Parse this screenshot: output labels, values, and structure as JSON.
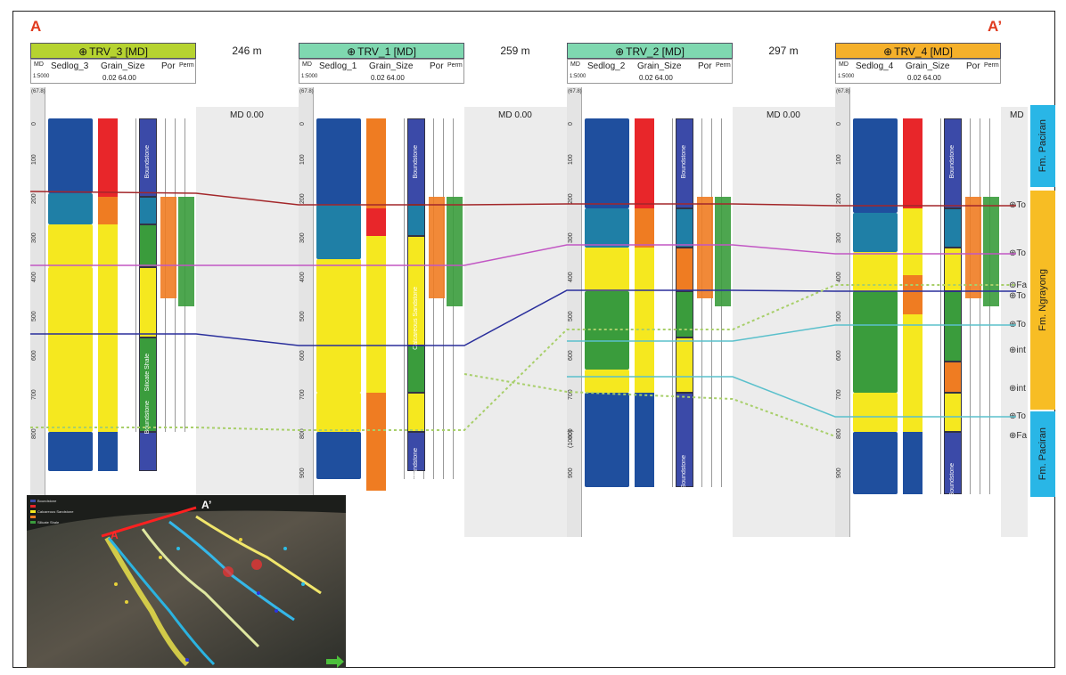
{
  "corners": {
    "left": "A",
    "right": "A’"
  },
  "wells": [
    {
      "name": "TRV_3 [MD]",
      "sedlog": "Sedlog_3",
      "color": "#b6d330"
    },
    {
      "name": "TRV_1 [MD]",
      "sedlog": "Sedlog_1",
      "color": "#7fd8b0"
    },
    {
      "name": "TRV_2 [MD]",
      "sedlog": "Sedlog_2",
      "color": "#7fd8b0"
    },
    {
      "name": "TRV_4 [MD]",
      "sedlog": "Sedlog_4",
      "color": "#f5b02a"
    }
  ],
  "track_labels": {
    "md": "MD",
    "scale": "1:5000",
    "grain_size": "Grain_Size",
    "grain_range": "0.02  64.00",
    "por": "Por",
    "perm": "Perm",
    "md_top": "MD 0.00",
    "md_short": "MD"
  },
  "spacings": [
    "246 m",
    "259 m",
    "297 m"
  ],
  "depth_ticks": [
    "0",
    "100",
    "200",
    "300",
    "400",
    "500",
    "600",
    "700",
    "800",
    "900"
  ],
  "extra_tick": "(1000)",
  "ruler_top": "(67.8)",
  "lithology": {
    "boundstone": "Boundstone",
    "calc_sand": "Calcareous Sandstone",
    "silicate": "Silicate Shale"
  },
  "formations": [
    {
      "name": "Fm. Paciran",
      "color": "#29b6e6"
    },
    {
      "name": "Fm. Ngrayong",
      "color": "#f7bd24"
    },
    {
      "name": "Fm. Paciran",
      "color": "#29b6e6"
    }
  ],
  "right_labels": [
    "To",
    "To",
    "Fa",
    "To",
    "To",
    "int",
    "int",
    "To",
    "Fa"
  ],
  "inset": {
    "a": "A",
    "a_prime": "A’"
  },
  "colors": {
    "dark_blue": "#1f4f9e",
    "teal": "#1f7fa6",
    "red": "#e8262a",
    "orange": "#ef7c22",
    "yellow": "#f5e81f",
    "green": "#3a9c3c",
    "purple_blue": "#3b4aa8"
  }
}
